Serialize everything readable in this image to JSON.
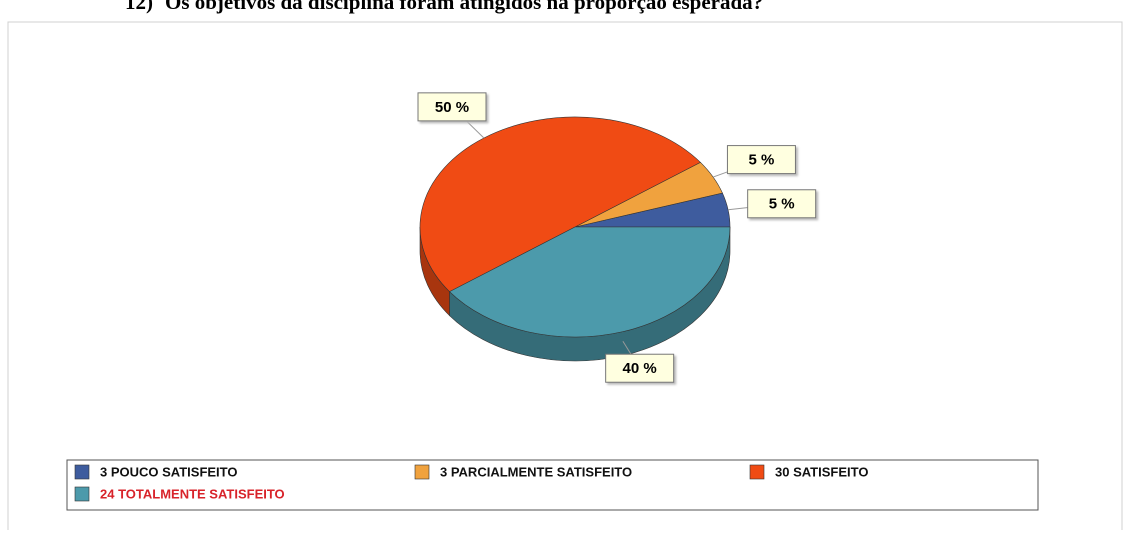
{
  "chart_data": {
    "type": "pie",
    "title_number": "12)",
    "title": "Os objetivos da disciplina foram atingidos na proporção esperada?",
    "categories": [
      "3 POUCO SATISFEITO",
      "3 PARCIALMENTE SATISFEITO",
      "30 SATISFEITO",
      "24 TOTALMENTE SATISFEITO"
    ],
    "values": [
      5,
      5,
      50,
      40
    ],
    "value_labels": [
      "5 %",
      "5 %",
      "50 %",
      "40 %"
    ],
    "colors": [
      "#3e5c9e",
      "#f0a23e",
      "#f04b14",
      "#4c9aab"
    ],
    "legend_text_colors": [
      "#111111",
      "#111111",
      "#111111",
      "#d8232a"
    ]
  }
}
